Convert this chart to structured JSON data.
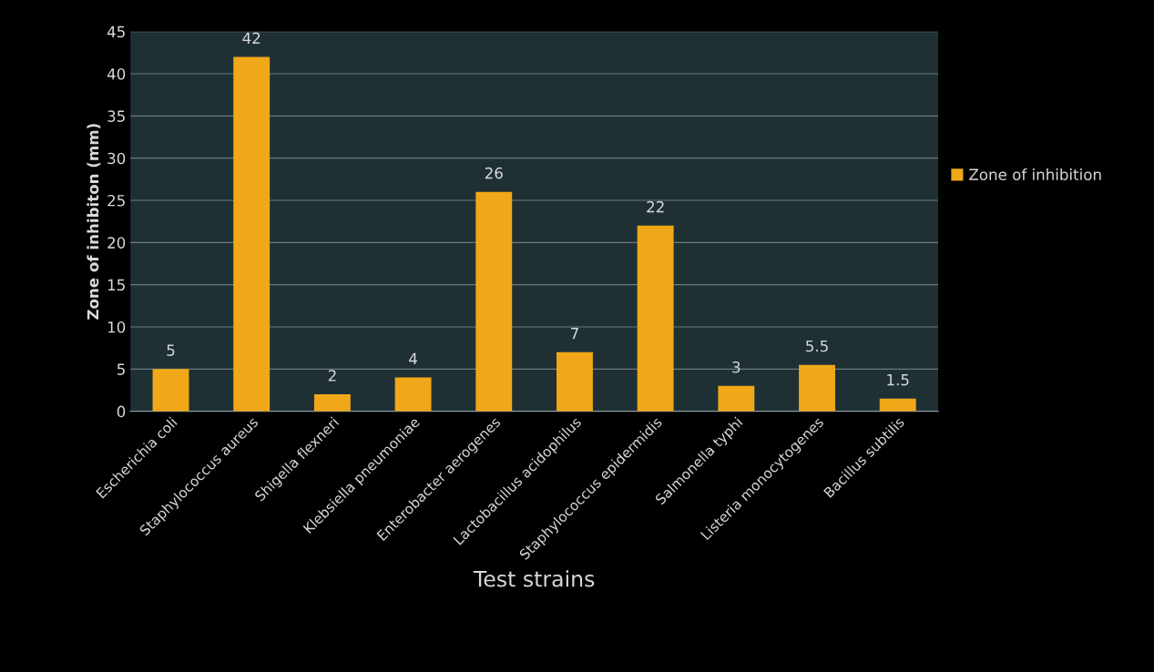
{
  "chart_data": {
    "type": "bar",
    "xlabel": "Test strains",
    "ylabel": "Zone of inhibiton (mm)",
    "categories": [
      "Escherichia coli",
      "Staphylococcus aureus",
      "Shigella flexneri",
      "Klebsiella pneumoniae",
      "Enterobacter aerogenes",
      "Lactobacillus acidophilus",
      "Staphylococcus epidermidis",
      "Salmonella typhi",
      "Listeria monocytogenes",
      "Bacillus subtilis"
    ],
    "series": [
      {
        "name": "Zone of inhibition",
        "color": "#f0a818",
        "values": [
          5,
          42,
          2,
          4,
          26,
          7,
          22,
          3,
          5.5,
          1.5
        ]
      }
    ],
    "ylim": [
      0,
      45
    ],
    "yticks": [
      0,
      5,
      10,
      15,
      20,
      25,
      30,
      35,
      40,
      45
    ],
    "grid": "y",
    "legend": "right",
    "data_labels": true
  }
}
